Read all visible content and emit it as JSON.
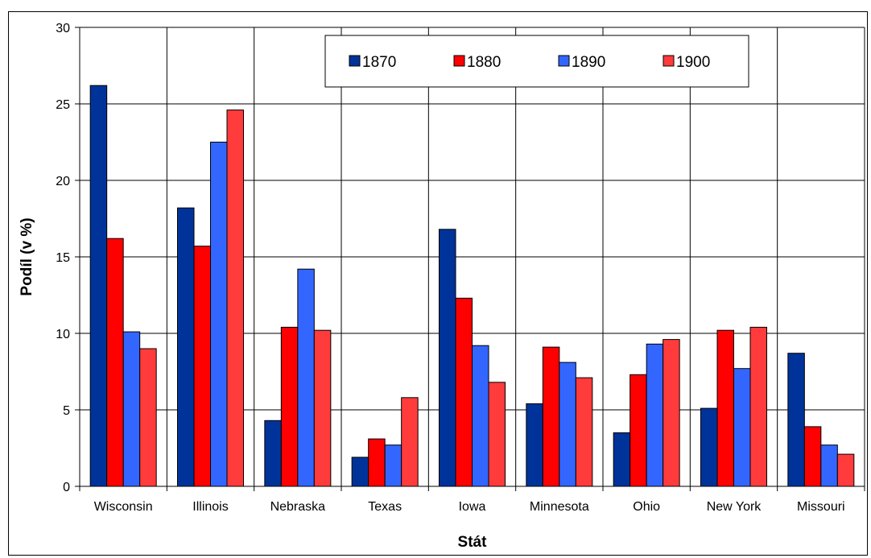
{
  "chart_data": {
    "type": "bar",
    "title": "",
    "xlabel": "Stát",
    "ylabel": "Podíl (v %)",
    "ylim": [
      0,
      30
    ],
    "yticks": [
      0,
      5,
      10,
      15,
      20,
      25,
      30
    ],
    "grid": true,
    "legend_position": "top-right",
    "categories": [
      "Wisconsin",
      "Illinois",
      "Nebraska",
      "Texas",
      "Iowa",
      "Minnesota",
      "Ohio",
      "New York",
      "Missouri"
    ],
    "series": [
      {
        "name": "1870",
        "color": "#003399",
        "values": [
          26.2,
          18.2,
          4.3,
          1.9,
          16.8,
          5.4,
          3.5,
          5.1,
          8.7
        ]
      },
      {
        "name": "1880",
        "color": "#ff0000",
        "values": [
          16.2,
          15.7,
          10.4,
          3.1,
          12.3,
          9.1,
          7.3,
          10.2,
          3.9
        ]
      },
      {
        "name": "1890",
        "color": "#3366ff",
        "values": [
          10.1,
          22.5,
          14.2,
          2.7,
          9.2,
          8.1,
          9.3,
          7.7,
          2.7
        ]
      },
      {
        "name": "1900",
        "color": "#ff3b3b",
        "values": [
          9.0,
          24.6,
          10.2,
          5.8,
          6.8,
          7.1,
          9.6,
          10.4,
          2.1
        ]
      }
    ]
  }
}
